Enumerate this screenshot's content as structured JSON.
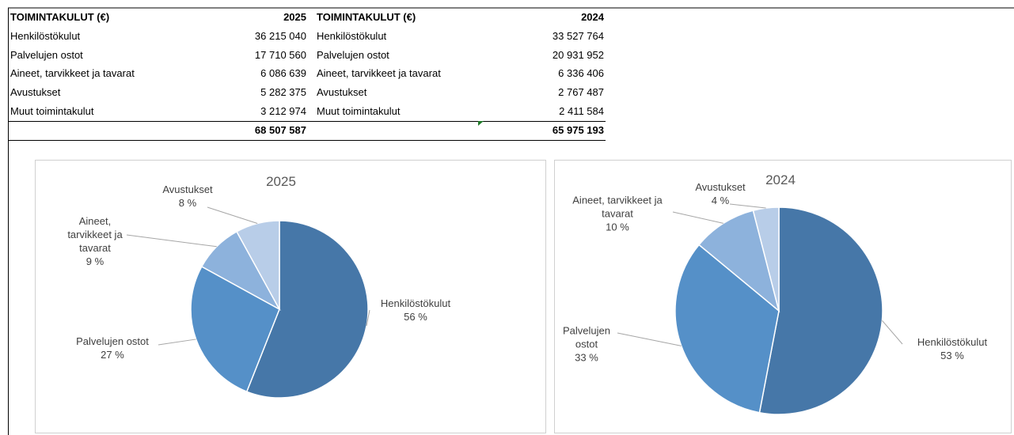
{
  "table": {
    "header": [
      "TOIMINTAKULUT (€)",
      "2025",
      "TOIMINTAKULUT (€)",
      "2024"
    ],
    "rows": [
      [
        "Henkilöstökulut",
        "36 215 040",
        "Henkilöstökulut",
        "33 527 764"
      ],
      [
        "Palvelujen ostot",
        "17 710 560",
        "Palvelujen ostot",
        "20 931 952"
      ],
      [
        "Aineet, tarvikkeet ja tavarat",
        "6 086 639",
        "Aineet, tarvikkeet ja tavarat",
        "6 336 406"
      ],
      [
        "Avustukset",
        "5 282 375",
        "Avustukset",
        "2 767 487"
      ],
      [
        "Muut toimintakulut",
        "3 212 974",
        "Muut toimintakulut",
        "2 411 584"
      ]
    ],
    "totals": [
      "68 507 587",
      "65 975 193"
    ]
  },
  "chart_data": [
    {
      "type": "pie",
      "title": "2025",
      "categories": [
        "Henkilöstökulut",
        "Palvelujen ostot",
        "Aineet, tarvikkeet ja tavarat",
        "Avustukset"
      ],
      "values": [
        56,
        27,
        9,
        8
      ],
      "value_labels": [
        "56 %",
        "27 %",
        "9 %",
        "8 %"
      ],
      "colors": [
        "#4677a8",
        "#5590c8",
        "#8db2dc",
        "#b8cde8"
      ]
    },
    {
      "type": "pie",
      "title": "2024",
      "categories": [
        "Henkilöstökulut",
        "Palvelujen ostot",
        "Aineet, tarvikkeet ja tavarat",
        "Avustukset"
      ],
      "values": [
        53,
        33,
        10,
        4
      ],
      "value_labels": [
        "53 %",
        "33 %",
        "10 %",
        "4 %"
      ],
      "colors": [
        "#4677a8",
        "#5590c8",
        "#8db2dc",
        "#b8cde8"
      ]
    }
  ]
}
